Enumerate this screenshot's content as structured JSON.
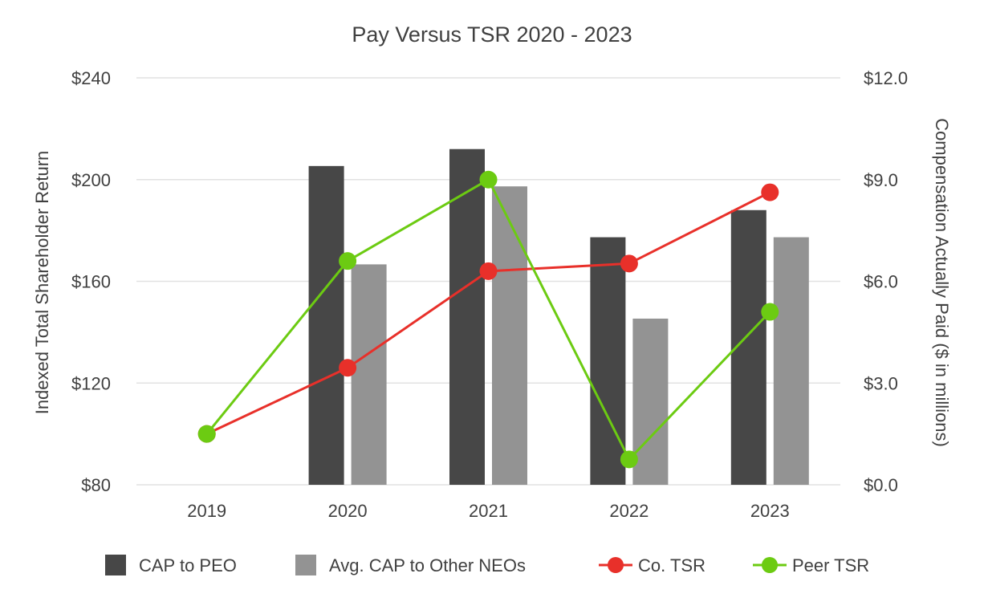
{
  "chart_data": {
    "type": "bar+line",
    "title": "Pay Versus TSR 2020 - 2023",
    "categories": [
      "2019",
      "2020",
      "2021",
      "2022",
      "2023"
    ],
    "y_left": {
      "label": "Indexed Total Shareholder Return",
      "range": [
        80,
        240
      ],
      "ticks": [
        80,
        120,
        160,
        200,
        240
      ],
      "tick_labels": [
        "$80",
        "$120",
        "$160",
        "$200",
        "$240"
      ]
    },
    "y_right": {
      "label": "Compensation Actually Paid ($ in millions)",
      "range": [
        0,
        12
      ],
      "ticks": [
        0,
        3,
        6,
        9,
        12
      ],
      "tick_labels": [
        "$0.0",
        "$3.0",
        "$6.0",
        "$9.0",
        "$12.0"
      ]
    },
    "bar_series": [
      {
        "name": "CAP to PEO",
        "axis": "right",
        "color": "#474747",
        "values": [
          null,
          9.4,
          9.9,
          7.3,
          8.1
        ]
      },
      {
        "name": "Avg. CAP to Other NEOs",
        "axis": "right",
        "color": "#939393",
        "values": [
          null,
          6.5,
          8.8,
          4.9,
          7.3
        ]
      }
    ],
    "line_series": [
      {
        "name": "Co. TSR",
        "axis": "left",
        "color": "#e8302a",
        "values": [
          100,
          126,
          164,
          167,
          195
        ]
      },
      {
        "name": "Peer TSR",
        "axis": "left",
        "color": "#6ccb12",
        "values": [
          100,
          168,
          200,
          90,
          148
        ]
      }
    ],
    "legend": {
      "position": "bottom",
      "items": [
        {
          "label": "CAP to PEO",
          "kind": "square",
          "color": "#474747"
        },
        {
          "label": "Avg. CAP to Other NEOs",
          "kind": "square",
          "color": "#939393"
        },
        {
          "label": "Co. TSR",
          "kind": "line-marker",
          "color": "#e8302a"
        },
        {
          "label": "Peer TSR",
          "kind": "line-marker",
          "color": "#6ccb12"
        }
      ]
    },
    "grid": true
  }
}
